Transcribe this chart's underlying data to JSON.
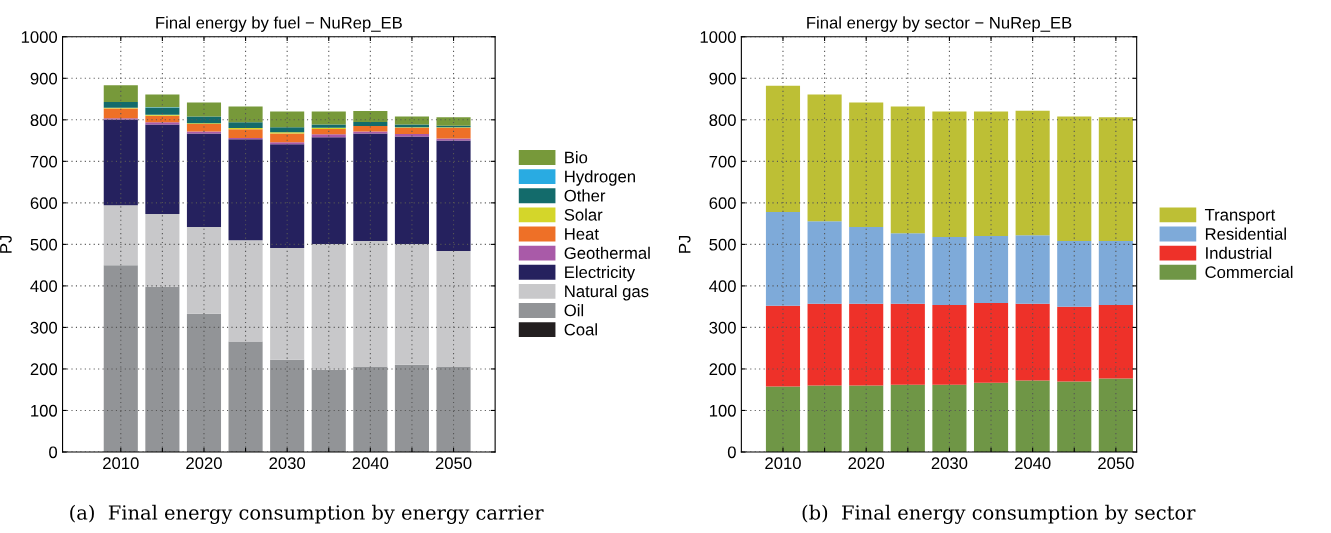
{
  "chart_data": [
    {
      "type": "bar",
      "stacked": true,
      "title": "Final energy by fuel − NuRep_EB",
      "ylabel": "PJ",
      "x": [
        2010,
        2015,
        2020,
        2025,
        2030,
        2035,
        2040,
        2045,
        2050
      ],
      "xlim": [
        2003,
        2055
      ],
      "xticks": [
        2010,
        {
          "value": 2015,
          "label": null
        },
        2020,
        {
          "value": 2025,
          "label": null
        },
        2030,
        {
          "value": 2035,
          "label": null
        },
        2040,
        {
          "value": 2045,
          "label": null
        },
        2050
      ],
      "ylim": [
        0,
        1000
      ],
      "yticks": [
        0,
        100,
        200,
        300,
        400,
        500,
        600,
        700,
        800,
        900,
        1000
      ],
      "grid": true,
      "legend": "right",
      "annotations": [
        "(a)  Final energy consumption by energy carrier"
      ],
      "series": [
        {
          "name": "Coal",
          "color": "#231f20",
          "values": [
            0,
            0,
            0,
            0,
            0,
            0,
            0,
            0,
            0
          ]
        },
        {
          "name": "Oil",
          "color": "#929497",
          "values": [
            450,
            398,
            333,
            266,
            222,
            198,
            206,
            210,
            206
          ]
        },
        {
          "name": "Natural gas",
          "color": "#c8c8ca",
          "values": [
            144,
            175,
            209,
            244,
            269,
            303,
            302,
            291,
            278
          ]
        },
        {
          "name": "Electricity",
          "color": "#25215e",
          "values": [
            207,
            216,
            225,
            243,
            250,
            257,
            259,
            259,
            266
          ]
        },
        {
          "name": "Geothermal",
          "color": "#a95aa8",
          "values": [
            3,
            5,
            5,
            3,
            5,
            7,
            5,
            6,
            5
          ]
        },
        {
          "name": "Heat",
          "color": "#ee7027",
          "values": [
            23,
            16,
            18,
            21,
            21,
            13,
            13,
            15,
            26
          ]
        },
        {
          "name": "Solar",
          "color": "#d4d62a",
          "values": [
            2,
            2,
            2,
            3,
            3,
            3,
            null,
            1,
            1
          ]
        },
        {
          "name": "Other",
          "color": "#136b6b",
          "values": [
            14,
            17,
            16,
            14,
            12,
            8,
            10,
            7,
            4
          ]
        },
        {
          "name": "Hydrogen",
          "color": "#29abe2",
          "values": [
            0,
            1,
            0,
            0,
            0,
            0,
            0,
            0,
            0
          ]
        },
        {
          "name": "Bio",
          "color": "#77993a",
          "values": [
            40,
            31,
            34,
            38,
            38,
            31,
            26,
            19,
            20
          ]
        }
      ]
    },
    {
      "type": "bar",
      "stacked": true,
      "title": "Final energy by sector − NuRep_EB",
      "ylabel": "PJ",
      "x": [
        2010,
        2015,
        2020,
        2025,
        2030,
        2035,
        2040,
        2045,
        2050
      ],
      "xlim": [
        2005,
        2052.5
      ],
      "xticks": [
        2010,
        {
          "value": 2015,
          "label": null
        },
        2020,
        {
          "value": 2025,
          "label": null
        },
        2030,
        {
          "value": 2035,
          "label": null
        },
        2040,
        {
          "value": 2045,
          "label": null
        },
        2050
      ],
      "ylim": [
        0,
        1000
      ],
      "yticks": [
        0,
        100,
        200,
        300,
        400,
        500,
        600,
        700,
        800,
        900,
        1000
      ],
      "grid": true,
      "legend": "right",
      "annotations": [
        "(b)  Final energy consumption by sector"
      ],
      "series": [
        {
          "name": "Commercial",
          "color": "#6f9646",
          "values": [
            158,
            160,
            160,
            162,
            162,
            167,
            172,
            170,
            177
          ]
        },
        {
          "name": "Industrial",
          "color": "#ee3129",
          "values": [
            194,
            197,
            197,
            195,
            192,
            192,
            185,
            180,
            177
          ]
        },
        {
          "name": "Residential",
          "color": "#7eaad9",
          "values": [
            226,
            199,
            185,
            170,
            164,
            161,
            165,
            158,
            154
          ]
        },
        {
          "name": "Transport",
          "color": "#bdbf35",
          "values": [
            304,
            305,
            300,
            305,
            302,
            300,
            300,
            300,
            298
          ]
        }
      ]
    }
  ]
}
